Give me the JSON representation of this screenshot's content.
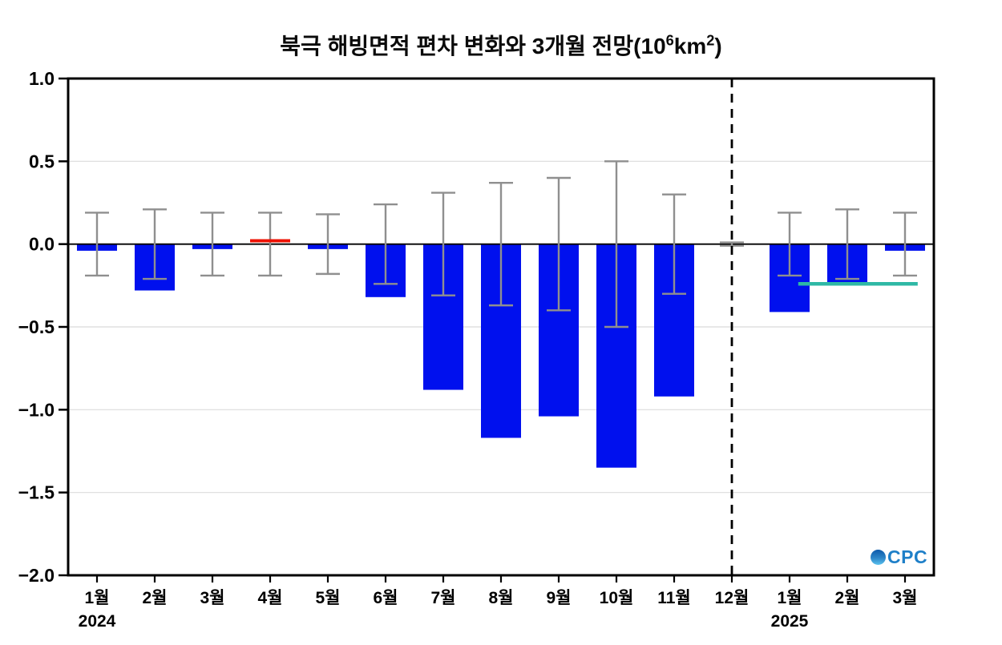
{
  "title": {
    "part1": "북극 해빙면적 편차 변화와 3개월 전망(10",
    "sup1": "6",
    "part2": "km",
    "sup2": "2",
    "part3": ")"
  },
  "logo": {
    "icon": "globe",
    "text": "CPC"
  },
  "chart_data": {
    "type": "bar",
    "title": "북극 해빙면적 편차 변화와 3개월 전망(10⁶km²)",
    "xlabel": "",
    "ylabel": "",
    "categories": [
      "1월",
      "2월",
      "3월",
      "4월",
      "5월",
      "6월",
      "7월",
      "8월",
      "9월",
      "10월",
      "11월",
      "12월",
      "1월",
      "2월",
      "3월"
    ],
    "year_labels": [
      {
        "index": 0,
        "label": "2024"
      },
      {
        "index": 12,
        "label": "2025"
      }
    ],
    "values": [
      -0.04,
      -0.28,
      -0.03,
      0.02,
      -0.03,
      -0.32,
      -0.88,
      -1.17,
      -1.04,
      -1.35,
      -0.92,
      0,
      -0.41,
      -0.25,
      -0.04
    ],
    "bar_styles": [
      "bar",
      "bar",
      "bar",
      "red-line",
      "bar",
      "bar",
      "bar",
      "bar",
      "bar",
      "bar",
      "bar",
      "none",
      "bar",
      "bar",
      "bar"
    ],
    "error_range": [
      0.19,
      0.21,
      0.19,
      0.19,
      0.18,
      0.24,
      0.31,
      0.37,
      0.4,
      0.5,
      0.3,
      0.01,
      0.19,
      0.21,
      0.19
    ],
    "forecast_divider_index": 11,
    "teal_line": {
      "start_index": 12.15,
      "end_index": 14.22,
      "value": -0.24
    },
    "ylim": [
      -2.0,
      1.0
    ],
    "yticks": [
      1.0,
      0.5,
      0.0,
      -0.5,
      -1.0,
      -1.5,
      -2.0
    ],
    "ytick_labels": [
      "1.0",
      "0.5",
      "0.0",
      "−0.5",
      "−1.0",
      "−1.5",
      "−2.0"
    ],
    "gridlines": [
      0.5,
      -0.5,
      -1.0,
      -1.5
    ],
    "grid_on": true,
    "legend": "none",
    "colors": {
      "bar": "#0010EE",
      "error": "#8F8F8F",
      "red_marker": "#EE1100",
      "teal": "#2EB8A5",
      "divider": "#000000",
      "grid": "#DBDBDB",
      "zero_line": "#000000",
      "frame": "#000000",
      "logo_blue": "#1E7FC8"
    }
  }
}
